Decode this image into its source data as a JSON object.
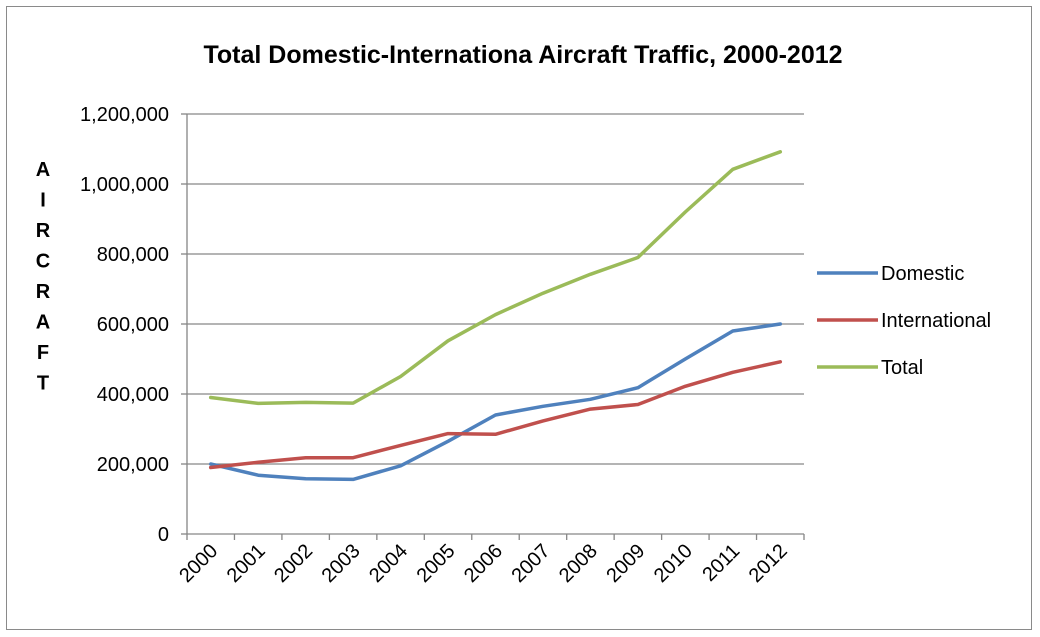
{
  "chart_data": {
    "type": "line",
    "title": "Total Domestic-Internationa Aircraft Traffic, 2000-2012",
    "ylabel": "AIRCRAFT",
    "xlabel": "",
    "categories": [
      "2000",
      "2001",
      "2002",
      "2003",
      "2004",
      "2005",
      "2006",
      "2007",
      "2008",
      "2009",
      "2010",
      "2011",
      "2012"
    ],
    "ylim": [
      0,
      1200000
    ],
    "yticks": [
      0,
      200000,
      400000,
      600000,
      800000,
      1000000,
      1200000
    ],
    "ytick_labels": [
      "0",
      "200,000",
      "400,000",
      "600,000",
      "800,000",
      "1,000,000",
      "1,200,000"
    ],
    "grid": "horizontal",
    "legend_position": "right",
    "series": [
      {
        "name": "Domestic",
        "color": "#4f81bd",
        "values": [
          200000,
          168000,
          158000,
          156000,
          195000,
          265000,
          340000,
          365000,
          385000,
          418000,
          500000,
          580000,
          600000
        ]
      },
      {
        "name": "International",
        "color": "#c0504d",
        "values": [
          190000,
          205000,
          218000,
          218000,
          253000,
          287000,
          285000,
          323000,
          357000,
          370000,
          422000,
          462000,
          492000
        ]
      },
      {
        "name": "Total",
        "color": "#9bbb59",
        "values": [
          390000,
          373000,
          376000,
          374000,
          450000,
          552000,
          627000,
          688000,
          742000,
          790000,
          920000,
          1042000,
          1092000
        ]
      }
    ]
  }
}
